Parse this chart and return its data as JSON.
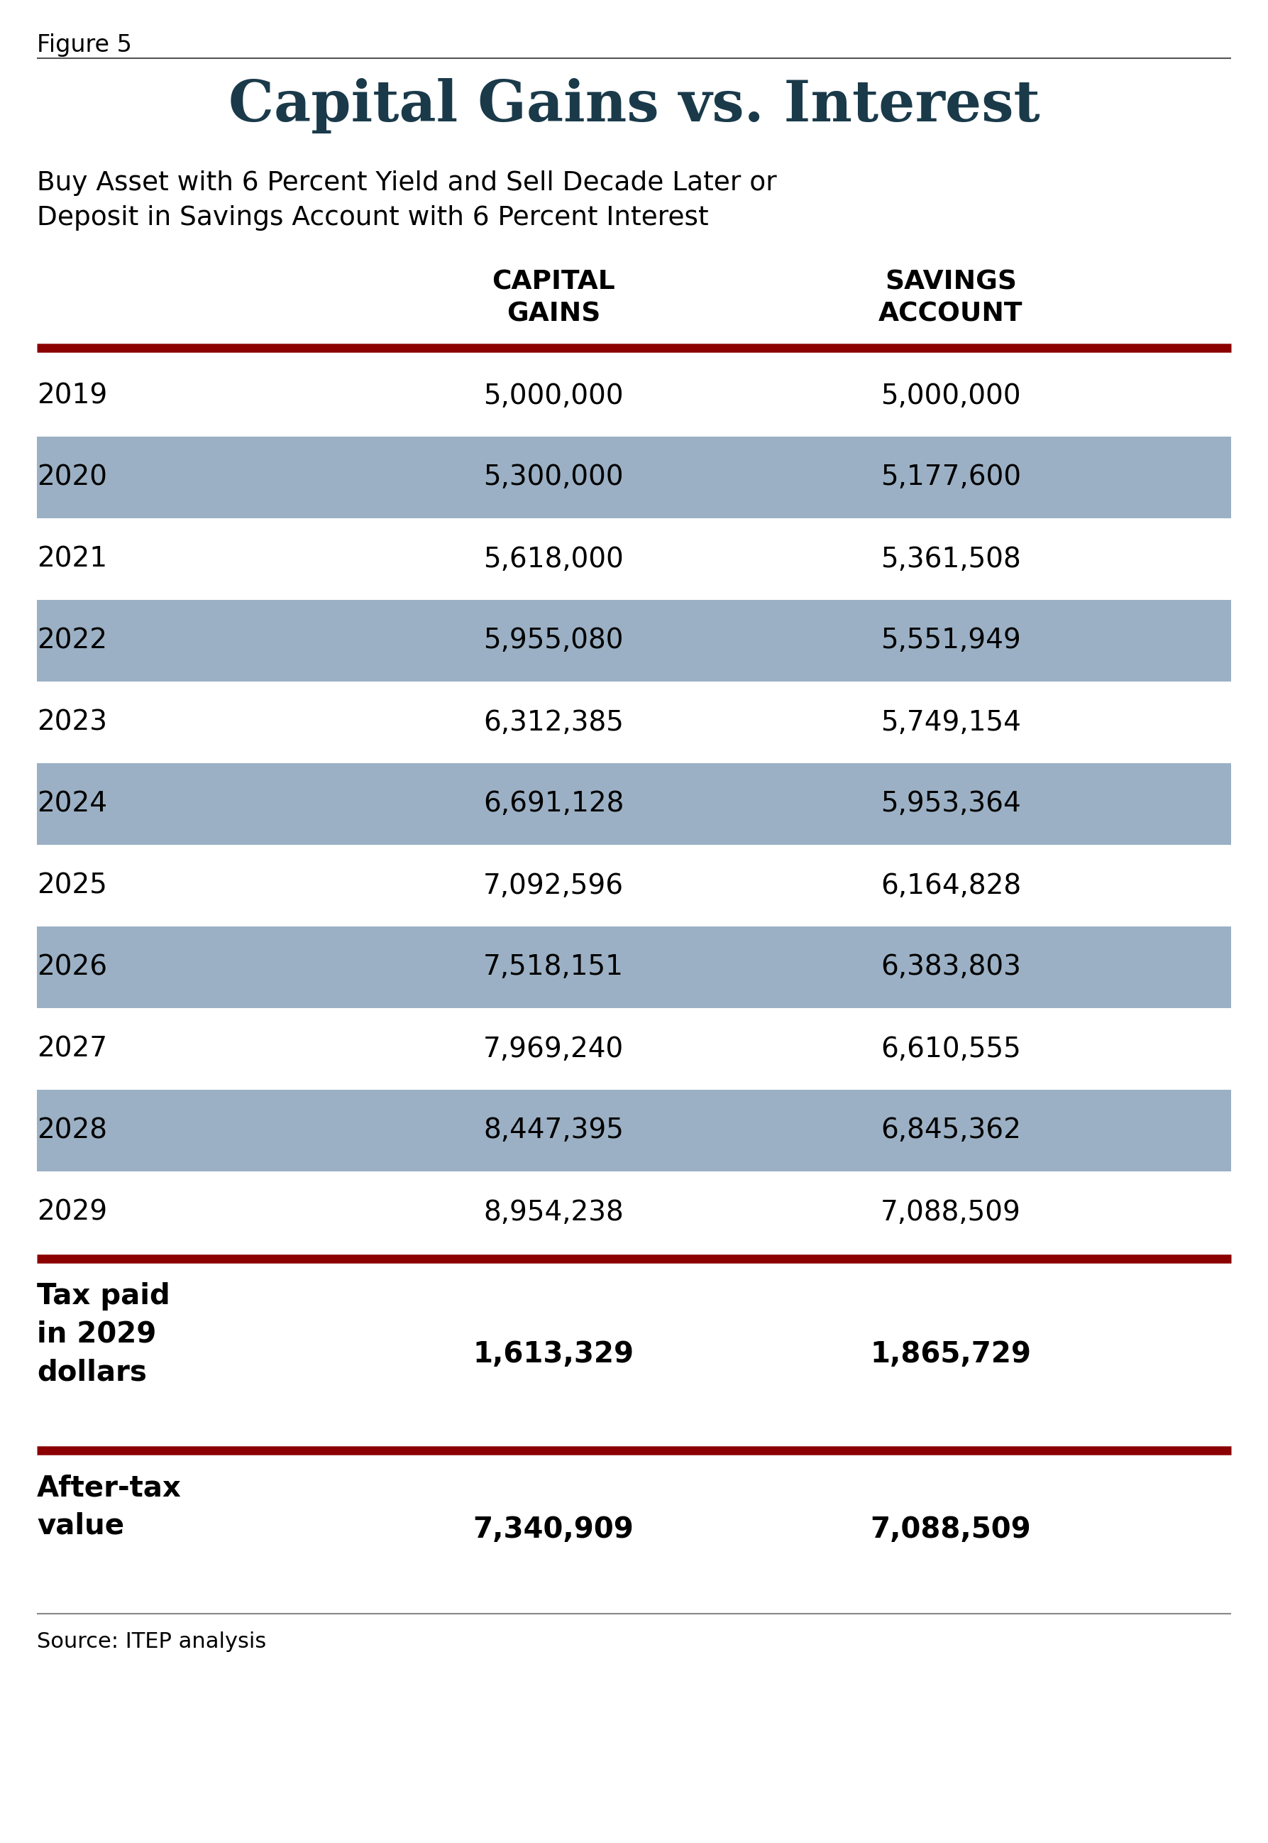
{
  "figure_label": "Figure 5",
  "title": "Capital Gains vs. Interest",
  "subtitle_line1": "Buy Asset with 6 Percent Yield and Sell Decade Later or",
  "subtitle_line2": "Deposit in Savings Account with 6 Percent Interest",
  "col_headers": [
    "",
    "CAPITAL\nGAINS",
    "SAVINGS\nACCOUNT"
  ],
  "rows": [
    [
      "2019",
      "5,000,000",
      "5,000,000"
    ],
    [
      "2020",
      "5,300,000",
      "5,177,600"
    ],
    [
      "2021",
      "5,618,000",
      "5,361,508"
    ],
    [
      "2022",
      "5,955,080",
      "5,551,949"
    ],
    [
      "2023",
      "6,312,385",
      "5,749,154"
    ],
    [
      "2024",
      "6,691,128",
      "5,953,364"
    ],
    [
      "2025",
      "7,092,596",
      "6,164,828"
    ],
    [
      "2026",
      "7,518,151",
      "6,383,803"
    ],
    [
      "2027",
      "7,969,240",
      "6,610,555"
    ],
    [
      "2028",
      "8,447,395",
      "6,845,362"
    ],
    [
      "2029",
      "8,954,238",
      "7,088,509"
    ]
  ],
  "tax_row_label": "Tax paid\nin 2029\ndollars",
  "tax_row_values": [
    "1,613,329",
    "1,865,729"
  ],
  "aftertax_row_label": "After-tax\nvalue",
  "aftertax_row_values": [
    "7,340,909",
    "7,088,509"
  ],
  "source": "Source: ITEP analysis",
  "stripe_color": "#9bb0c4",
  "dark_red": "#8b0000",
  "title_color": "#1a3a4a",
  "header_color": "#000000",
  "bg_color": "#ffffff",
  "striped_rows": [
    1,
    3,
    5,
    7,
    9
  ]
}
